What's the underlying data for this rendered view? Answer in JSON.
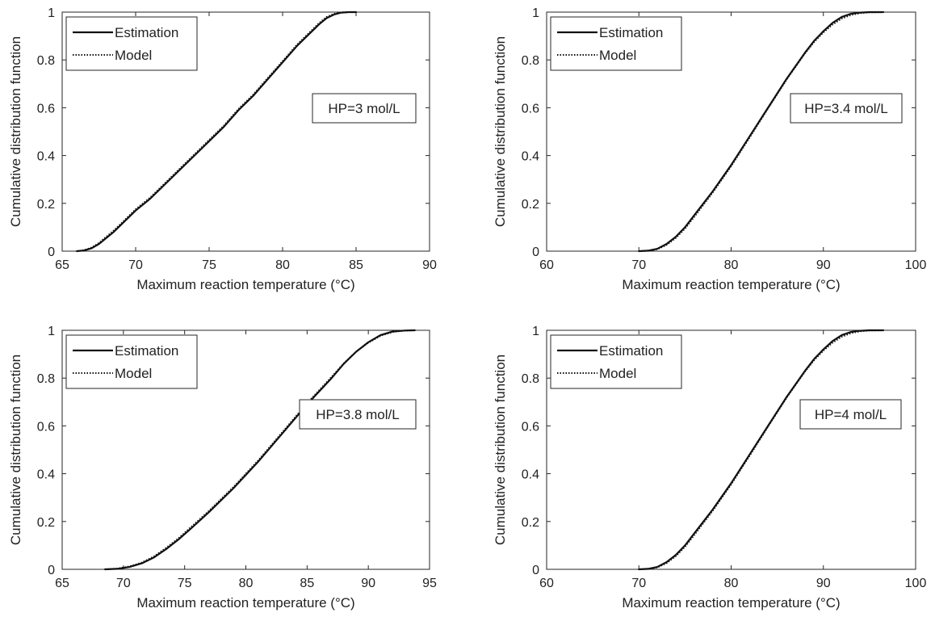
{
  "style": {
    "line_color": "#111111",
    "axis_color": "#262626",
    "background": "#ffffff"
  },
  "chart_data": [
    {
      "type": "line",
      "xlabel": "Maximum reaction temperature (°C)",
      "ylabel": "Cumulative distribution function",
      "xlim": [
        65,
        90
      ],
      "ylim": [
        0,
        1
      ],
      "xticks": [
        "65",
        "70",
        "75",
        "80",
        "85",
        "90"
      ],
      "yticks": [
        "0",
        "0.2",
        "0.4",
        "0.6",
        "0.8",
        "1"
      ],
      "annotation": "HP=3 mol/L",
      "legend_position": "top-left",
      "series": [
        {
          "name": "Estimation",
          "style": "solid",
          "x": [
            66.0,
            66.5,
            67.0,
            67.5,
            68.0,
            68.5,
            69.0,
            70.0,
            71.0,
            72.0,
            73.0,
            74.0,
            75.0,
            76.0,
            77.0,
            78.0,
            79.0,
            80.0,
            81.0,
            82.0,
            82.5,
            83.0,
            83.5,
            84.0,
            84.5,
            85.0
          ],
          "y": [
            0.0,
            0.003,
            0.012,
            0.03,
            0.055,
            0.08,
            0.11,
            0.17,
            0.22,
            0.28,
            0.34,
            0.4,
            0.46,
            0.52,
            0.59,
            0.65,
            0.72,
            0.79,
            0.86,
            0.92,
            0.95,
            0.975,
            0.99,
            0.998,
            1.0,
            1.0
          ]
        },
        {
          "name": "Model",
          "style": "dotted",
          "x": [
            66.0,
            66.5,
            67.0,
            67.5,
            68.0,
            68.5,
            69.0,
            70.0,
            71.0,
            72.0,
            73.0,
            74.0,
            75.0,
            76.0,
            77.0,
            78.0,
            79.0,
            80.0,
            81.0,
            82.0,
            82.5,
            83.0,
            83.5,
            84.0,
            84.5,
            85.0
          ],
          "y": [
            0.0,
            0.004,
            0.015,
            0.034,
            0.06,
            0.086,
            0.115,
            0.175,
            0.225,
            0.285,
            0.345,
            0.405,
            0.465,
            0.525,
            0.595,
            0.655,
            0.725,
            0.795,
            0.865,
            0.925,
            0.955,
            0.98,
            0.993,
            0.999,
            1.0,
            1.0
          ]
        }
      ]
    },
    {
      "type": "line",
      "xlabel": "Maximum reaction temperature (°C)",
      "ylabel": "Cumulative distribution function",
      "xlim": [
        60,
        100
      ],
      "ylim": [
        0,
        1
      ],
      "xticks": [
        "60",
        "70",
        "80",
        "90",
        "100"
      ],
      "yticks": [
        "0",
        "0.2",
        "0.4",
        "0.6",
        "0.8",
        "1"
      ],
      "annotation": "HP=3.4 mol/L",
      "legend_position": "top-left",
      "series": [
        {
          "name": "Estimation",
          "style": "solid",
          "x": [
            70.0,
            71.0,
            72.0,
            73.0,
            74.0,
            75.0,
            76.0,
            77.0,
            78.0,
            80.0,
            82.0,
            84.0,
            86.0,
            88.0,
            89.0,
            90.0,
            91.0,
            92.0,
            93.0,
            94.0,
            95.0,
            96.5
          ],
          "y": [
            0.0,
            0.002,
            0.01,
            0.03,
            0.06,
            0.1,
            0.15,
            0.2,
            0.25,
            0.36,
            0.48,
            0.6,
            0.72,
            0.83,
            0.88,
            0.92,
            0.955,
            0.98,
            0.993,
            0.998,
            1.0,
            1.0
          ]
        },
        {
          "name": "Model",
          "style": "dotted",
          "x": [
            70.0,
            71.0,
            72.0,
            73.0,
            74.0,
            75.0,
            76.0,
            77.0,
            78.0,
            80.0,
            82.0,
            84.0,
            86.0,
            88.0,
            89.0,
            90.0,
            91.0,
            92.0,
            93.0,
            94.0,
            95.0,
            96.5
          ],
          "y": [
            0.0,
            0.001,
            0.008,
            0.026,
            0.055,
            0.094,
            0.143,
            0.194,
            0.245,
            0.355,
            0.475,
            0.597,
            0.717,
            0.827,
            0.875,
            0.915,
            0.948,
            0.973,
            0.988,
            0.996,
            0.999,
            1.0
          ]
        }
      ]
    },
    {
      "type": "line",
      "xlabel": "Maximum reaction temperature (°C)",
      "ylabel": "Cumulative distribution function",
      "xlim": [
        65,
        95
      ],
      "ylim": [
        0,
        1
      ],
      "xticks": [
        "65",
        "70",
        "75",
        "80",
        "85",
        "90",
        "95"
      ],
      "yticks": [
        "0",
        "0.2",
        "0.4",
        "0.6",
        "0.8",
        "1"
      ],
      "annotation": "HP=3.8 mol/L",
      "legend_position": "top-left",
      "series": [
        {
          "name": "Estimation",
          "style": "solid",
          "x": [
            68.5,
            69.5,
            70.5,
            71.5,
            72.5,
            73.5,
            74.5,
            75.5,
            77.0,
            79.0,
            81.0,
            83.0,
            85.0,
            87.0,
            88.0,
            89.0,
            90.0,
            91.0,
            92.0,
            93.0,
            93.8
          ],
          "y": [
            0.0,
            0.002,
            0.01,
            0.025,
            0.05,
            0.085,
            0.125,
            0.17,
            0.24,
            0.34,
            0.45,
            0.57,
            0.69,
            0.8,
            0.86,
            0.91,
            0.95,
            0.98,
            0.995,
            0.999,
            1.0
          ]
        },
        {
          "name": "Model",
          "style": "dotted",
          "x": [
            68.5,
            69.5,
            70.5,
            71.5,
            72.5,
            73.5,
            74.5,
            75.5,
            77.0,
            79.0,
            81.0,
            83.0,
            85.0,
            87.0,
            88.0,
            89.0,
            90.0,
            91.0,
            92.0,
            93.0,
            93.8
          ],
          "y": [
            0.0,
            0.003,
            0.012,
            0.028,
            0.054,
            0.09,
            0.13,
            0.176,
            0.245,
            0.345,
            0.455,
            0.575,
            0.695,
            0.805,
            0.862,
            0.91,
            0.948,
            0.977,
            0.993,
            0.999,
            1.0
          ]
        }
      ]
    },
    {
      "type": "line",
      "xlabel": "Maximum reaction temperature (°C)",
      "ylabel": "Cumulative distribution function",
      "xlim": [
        60,
        100
      ],
      "ylim": [
        0,
        1
      ],
      "xticks": [
        "60",
        "70",
        "80",
        "90",
        "100"
      ],
      "yticks": [
        "0",
        "0.2",
        "0.4",
        "0.6",
        "0.8",
        "1"
      ],
      "annotation": "HP=4 mol/L",
      "legend_position": "top-left",
      "series": [
        {
          "name": "Estimation",
          "style": "solid",
          "x": [
            70.0,
            71.0,
            72.0,
            73.0,
            74.0,
            75.0,
            76.0,
            77.0,
            78.0,
            80.0,
            82.0,
            84.0,
            86.0,
            88.0,
            89.0,
            90.0,
            91.0,
            92.0,
            93.0,
            94.0,
            95.0,
            96.5
          ],
          "y": [
            0.0,
            0.002,
            0.01,
            0.03,
            0.06,
            0.1,
            0.15,
            0.2,
            0.25,
            0.36,
            0.48,
            0.6,
            0.72,
            0.83,
            0.88,
            0.92,
            0.955,
            0.98,
            0.993,
            0.998,
            1.0,
            1.0
          ]
        },
        {
          "name": "Model",
          "style": "dotted",
          "x": [
            70.0,
            71.0,
            72.0,
            73.0,
            74.0,
            75.0,
            76.0,
            77.0,
            78.0,
            80.0,
            82.0,
            84.0,
            86.0,
            88.0,
            89.0,
            90.0,
            91.0,
            92.0,
            93.0,
            94.0,
            95.0,
            96.5
          ],
          "y": [
            0.0,
            0.001,
            0.008,
            0.026,
            0.055,
            0.094,
            0.143,
            0.194,
            0.245,
            0.355,
            0.475,
            0.597,
            0.717,
            0.827,
            0.875,
            0.915,
            0.948,
            0.973,
            0.988,
            0.996,
            0.999,
            1.0
          ]
        }
      ]
    }
  ]
}
